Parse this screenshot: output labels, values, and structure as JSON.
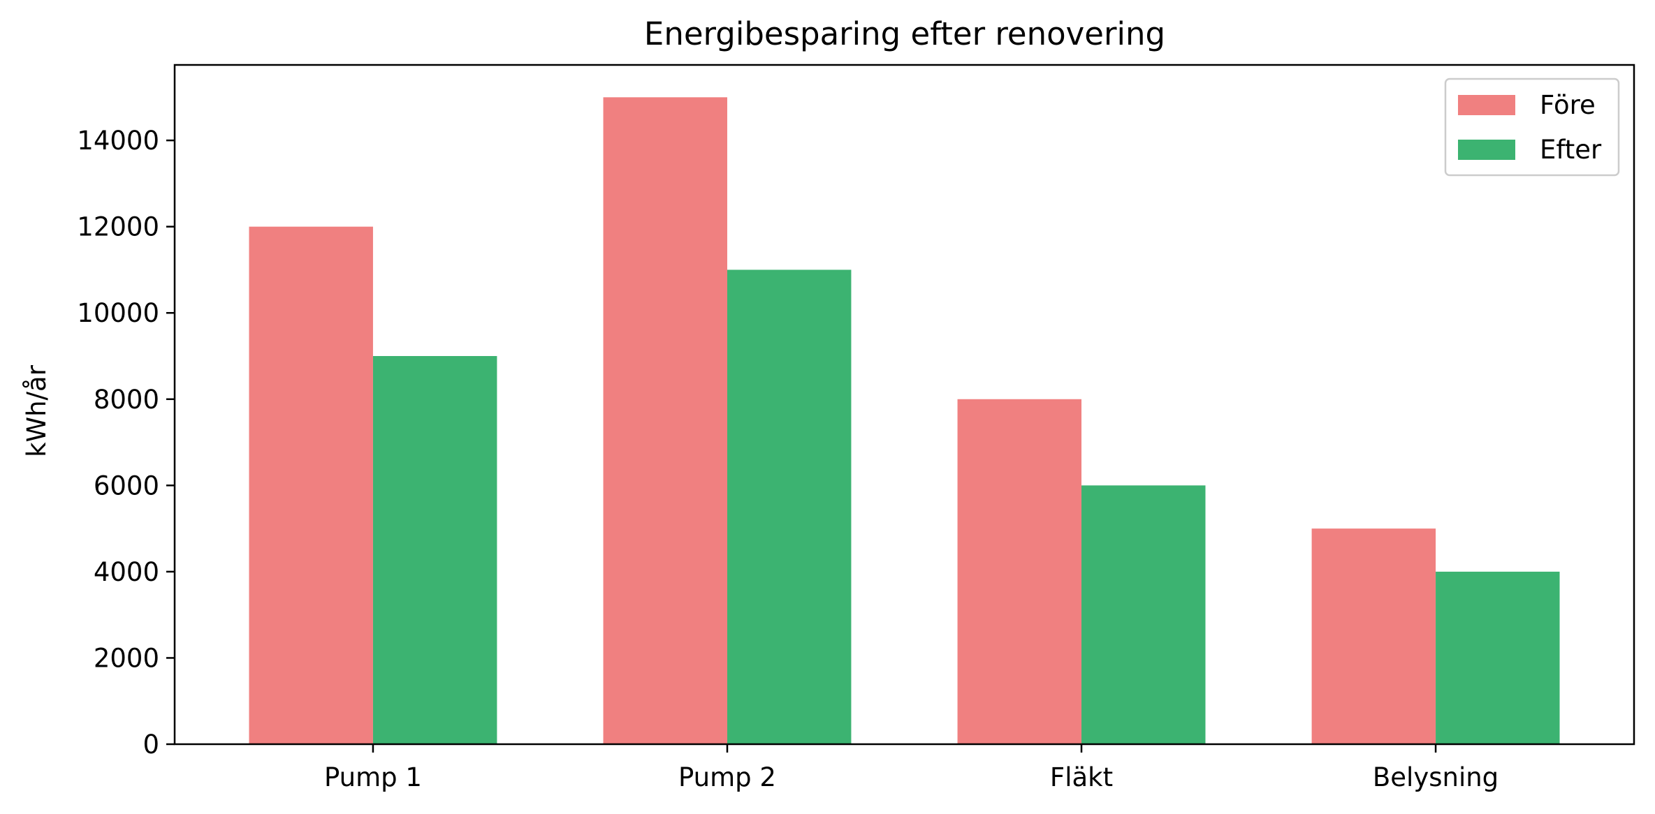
{
  "chart_data": {
    "type": "bar",
    "title": "Energibesparing efter renovering",
    "xlabel": "",
    "ylabel": "kWh/år",
    "categories": [
      "Pump 1",
      "Pump 2",
      "Fläkt",
      "Belysning"
    ],
    "series": [
      {
        "name": "Före",
        "values": [
          12000,
          15000,
          8000,
          5000
        ],
        "color": "#f08080"
      },
      {
        "name": "Efter",
        "values": [
          9000,
          11000,
          6000,
          4000
        ],
        "color": "#3cb371"
      }
    ],
    "ylim": [
      0,
      15750
    ],
    "yticks": [
      0,
      2000,
      4000,
      6000,
      8000,
      10000,
      12000,
      14000
    ],
    "grid": false,
    "legend_position": "top-right"
  }
}
